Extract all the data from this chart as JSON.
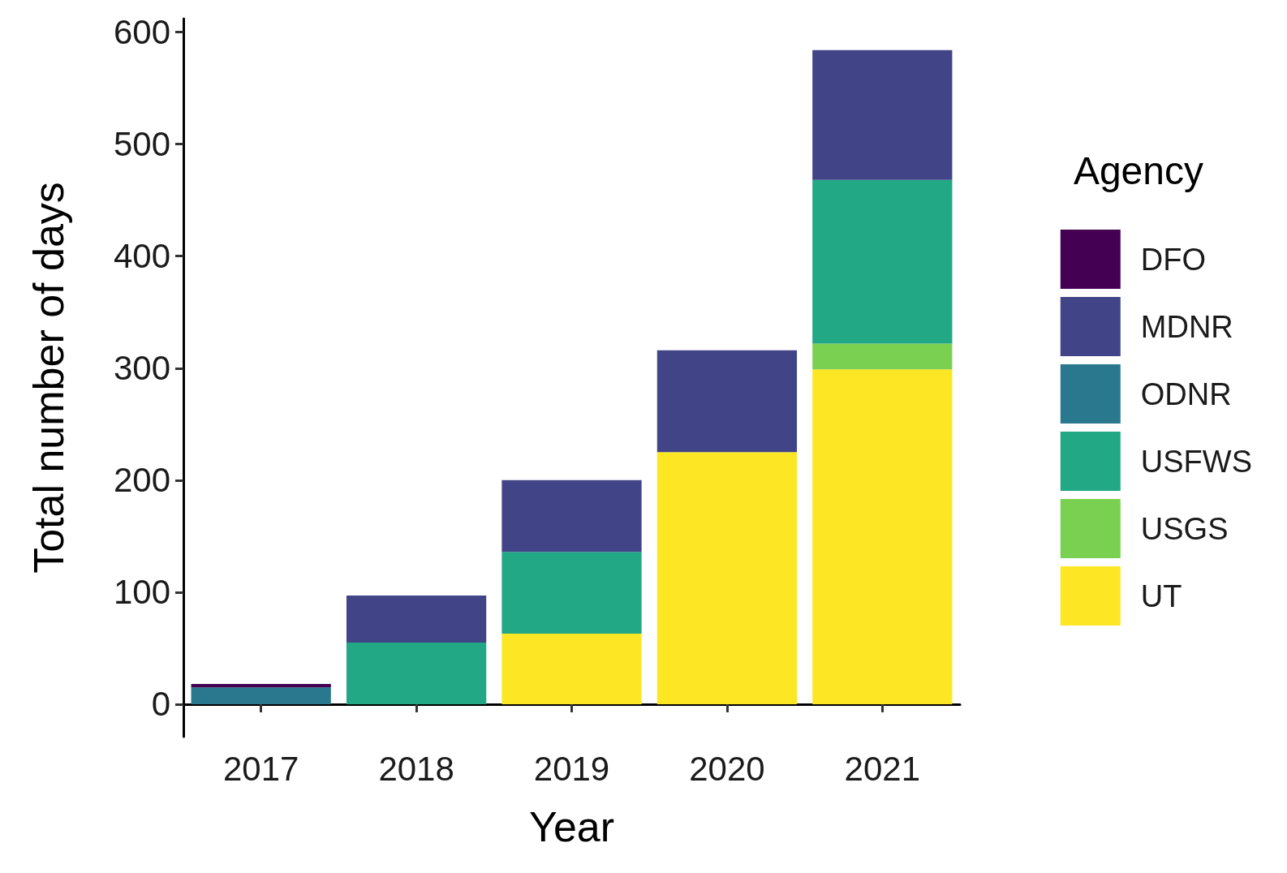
{
  "chart_data": {
    "type": "bar",
    "xlabel": "Year",
    "ylabel": "Total number of days",
    "legend_title": "Agency",
    "categories": [
      "2017",
      "2018",
      "2019",
      "2020",
      "2021"
    ],
    "stacked": true,
    "legend": "right",
    "grid": false,
    "ylim": [
      -29,
      612
    ],
    "yticks": [
      0,
      100,
      200,
      300,
      400,
      500,
      600
    ],
    "series": [
      {
        "name": "UT",
        "color": "#fde725",
        "values": [
          null,
          null,
          63,
          225,
          299
        ]
      },
      {
        "name": "USGS",
        "color": "#7ad151",
        "values": [
          null,
          null,
          null,
          null,
          23
        ]
      },
      {
        "name": "USFWS",
        "color": "#22a884",
        "values": [
          null,
          55,
          73,
          null,
          146
        ]
      },
      {
        "name": "ODNR",
        "color": "#2a788e",
        "values": [
          15,
          null,
          null,
          null,
          null
        ]
      },
      {
        "name": "MDNR",
        "color": "#414487",
        "values": [
          null,
          42,
          64,
          91,
          116
        ]
      },
      {
        "name": "DFO",
        "color": "#440154",
        "values": [
          3,
          null,
          null,
          null,
          null
        ]
      }
    ]
  }
}
